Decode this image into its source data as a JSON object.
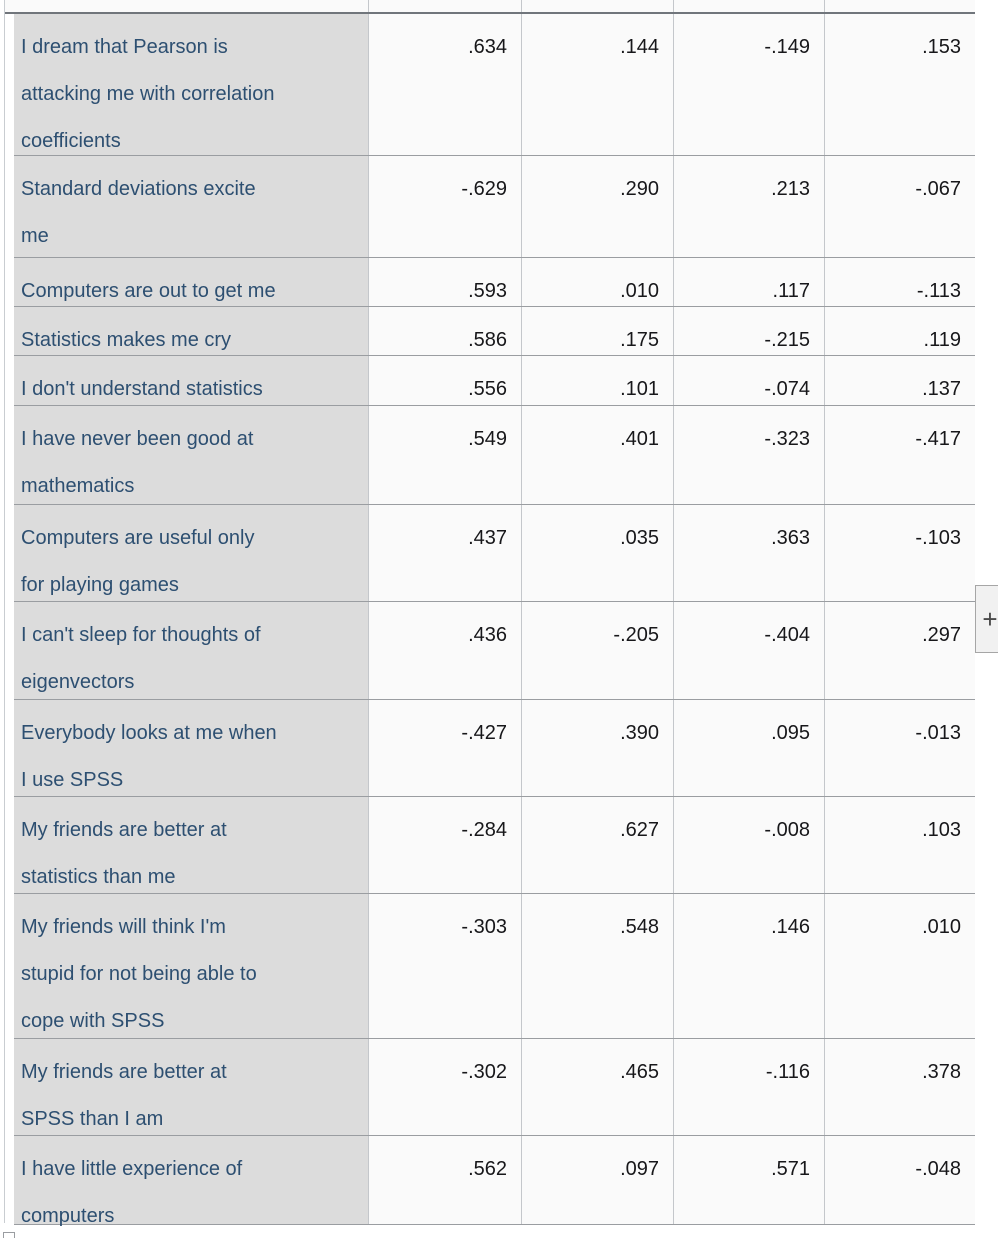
{
  "table": {
    "description": "SPSS factor loadings output table",
    "rows": [
      {
        "label_lines": [
          "I dream that Pearson is",
          "attacking me with correlation",
          "coefficients"
        ],
        "values": [
          ".634",
          ".144",
          "-.149",
          ".153"
        ]
      },
      {
        "label_lines": [
          "Standard deviations excite",
          "me"
        ],
        "values": [
          "-.629",
          ".290",
          ".213",
          "-.067"
        ]
      },
      {
        "label_lines": [
          "Computers are out to get me"
        ],
        "values": [
          ".593",
          ".010",
          ".117",
          "-.113"
        ]
      },
      {
        "label_lines": [
          "Statistics makes me cry"
        ],
        "values": [
          ".586",
          ".175",
          "-.215",
          ".119"
        ]
      },
      {
        "label_lines": [
          "I don't understand statistics"
        ],
        "values": [
          ".556",
          ".101",
          "-.074",
          ".137"
        ]
      },
      {
        "label_lines": [
          "I have never been good at",
          "mathematics"
        ],
        "values": [
          ".549",
          ".401",
          "-.323",
          "-.417"
        ]
      },
      {
        "label_lines": [
          "Computers are useful only",
          "for playing games"
        ],
        "values": [
          ".437",
          ".035",
          ".363",
          "-.103"
        ]
      },
      {
        "label_lines": [
          "I can't sleep for thoughts of",
          "eigenvectors"
        ],
        "values": [
          ".436",
          "-.205",
          "-.404",
          ".297"
        ]
      },
      {
        "label_lines": [
          "Everybody looks at me when",
          "I use SPSS"
        ],
        "values": [
          "-.427",
          ".390",
          ".095",
          "-.013"
        ]
      },
      {
        "label_lines": [
          "My friends are better at",
          "statistics than me"
        ],
        "values": [
          "-.284",
          ".627",
          "-.008",
          ".103"
        ]
      },
      {
        "label_lines": [
          "My friends will think I'm",
          "stupid for not being able to",
          "cope with SPSS"
        ],
        "values": [
          "-.303",
          ".548",
          ".146",
          ".010"
        ]
      },
      {
        "label_lines": [
          "My friends are better at",
          "SPSS than I am"
        ],
        "values": [
          "-.302",
          ".465",
          "-.116",
          ".378"
        ]
      },
      {
        "label_lines": [
          "I have little experience of",
          "computers"
        ],
        "values": [
          ".562",
          ".097",
          ".571",
          "-.048"
        ]
      }
    ]
  },
  "controls": {
    "plus_label": "+"
  },
  "colors": {
    "label_bg": "#dcdcdc",
    "label_text": "#2d4f71",
    "value_text": "#17171a",
    "row_border": "#9a9da1",
    "column_border": "#c4c7cb",
    "header_border": "#70757b",
    "cell_bg": "#fafafa"
  }
}
